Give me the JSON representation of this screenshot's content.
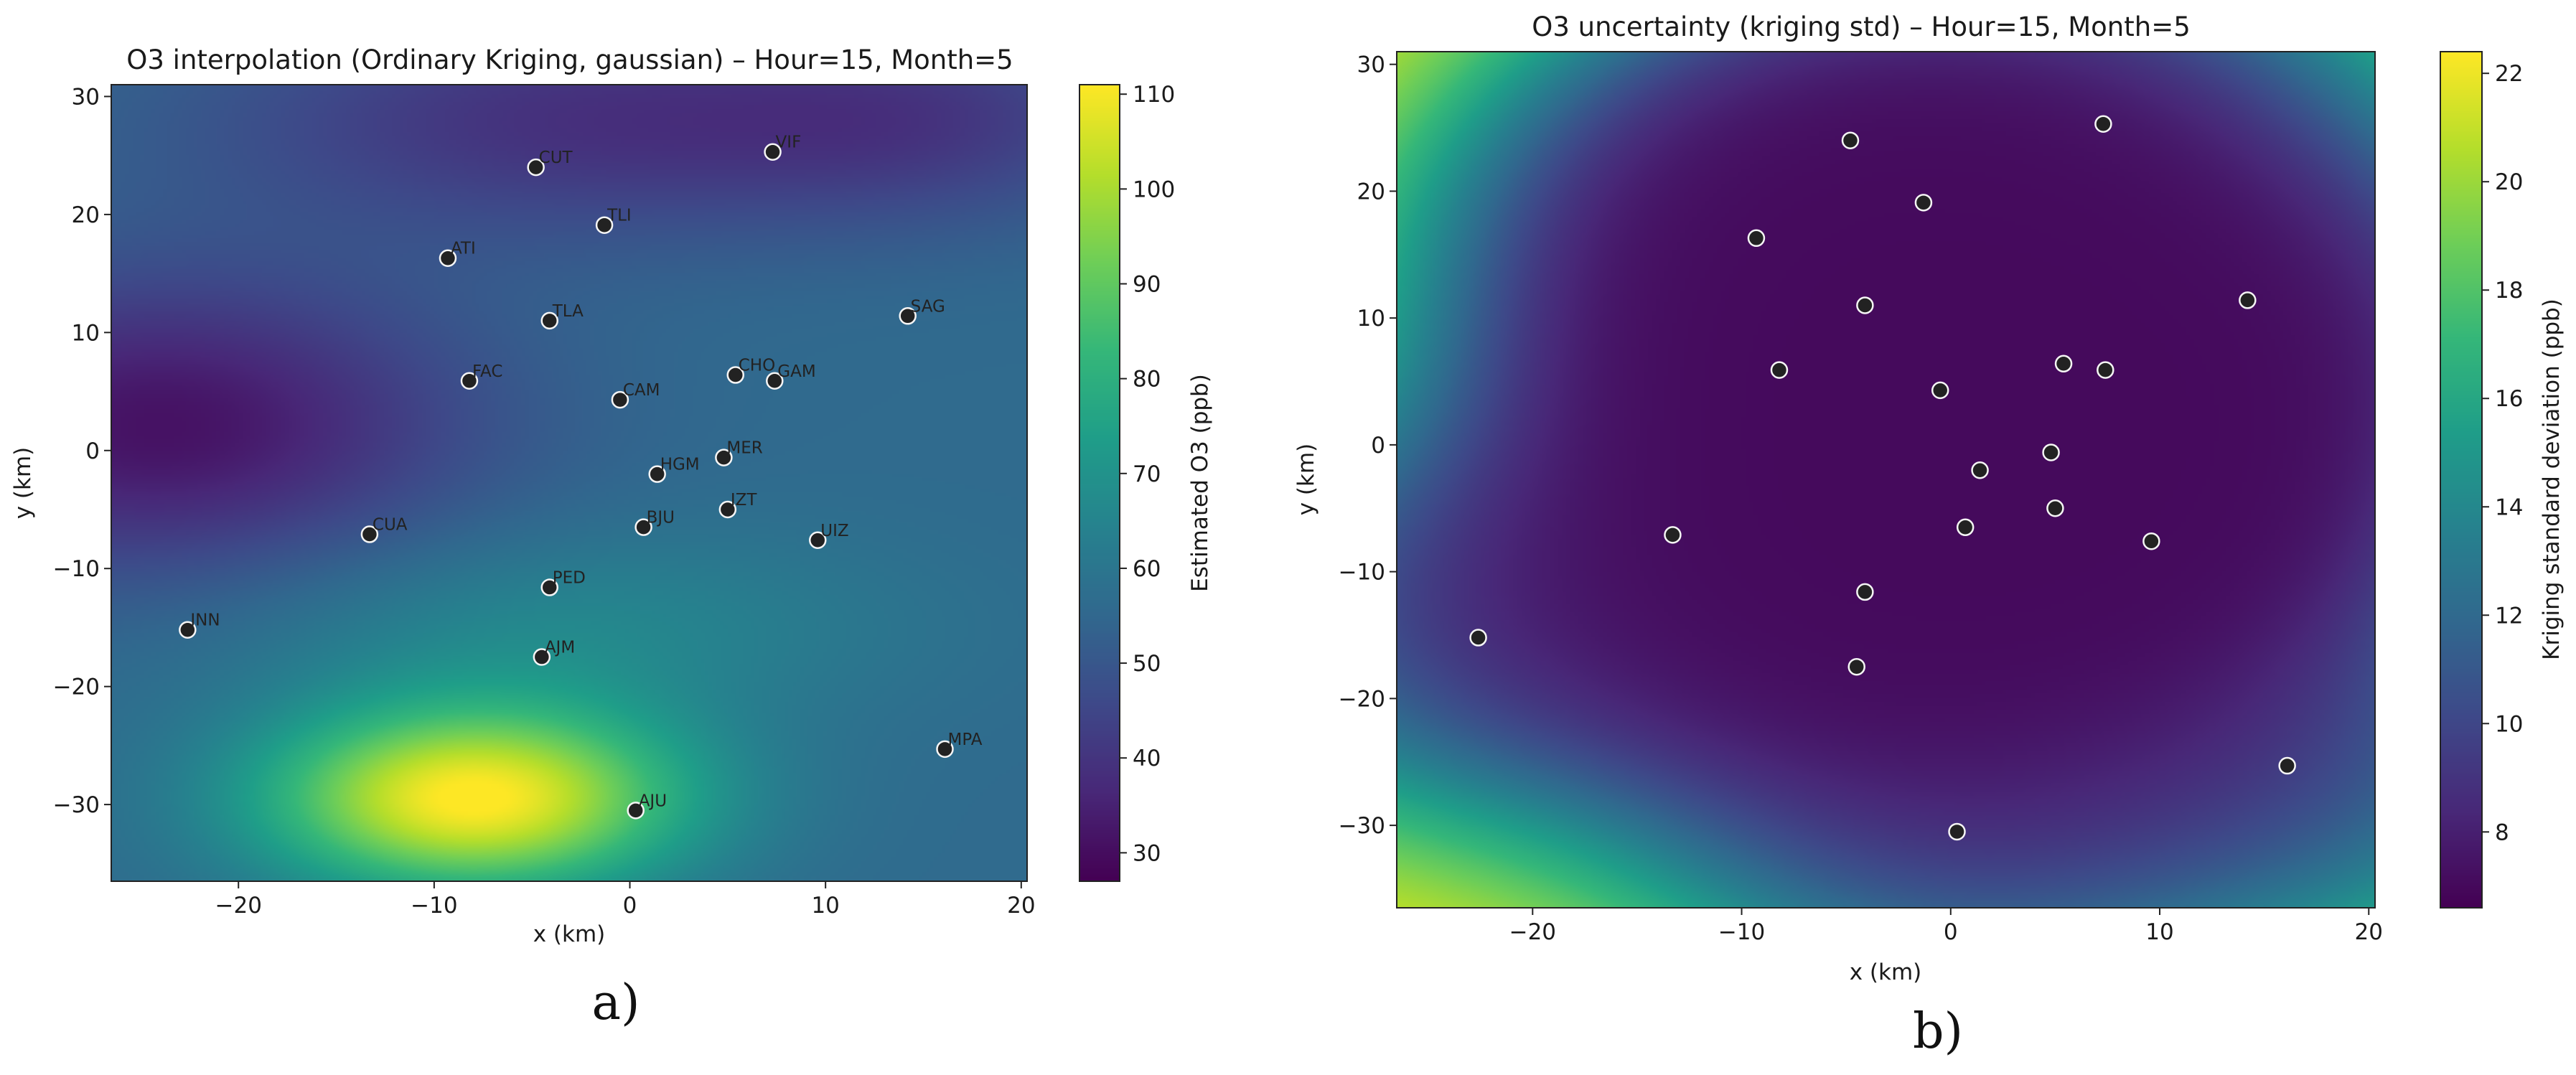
{
  "colors": {
    "viridis": [
      "#440154",
      "#482878",
      "#3e4989",
      "#31688e",
      "#26828e",
      "#1f9e89",
      "#35b779",
      "#6ece58",
      "#b5de2b",
      "#fde725"
    ],
    "marker_fill": "#222222",
    "marker_stroke": "#f5f5f5"
  },
  "chart_data": [
    {
      "type": "heatmap",
      "title": "O3 interpolation (Ordinary Kriging, gaussian) – Hour=15, Month=5",
      "xlabel": "x (km)",
      "ylabel": "y (km)",
      "xlim": [
        -26.5,
        20.3
      ],
      "ylim": [
        -36.5,
        31.0
      ],
      "xticks": [
        -20,
        -10,
        0,
        10,
        20
      ],
      "yticks": [
        -30,
        -20,
        -10,
        0,
        10,
        20,
        30
      ],
      "colorbar": {
        "label": "Estimated O3 (ppb)",
        "range": [
          27,
          111
        ],
        "ticks": [
          30,
          40,
          50,
          60,
          70,
          80,
          90,
          100,
          110
        ]
      },
      "field": {
        "base": 56,
        "components": [
          {
            "x": -8,
            "y": -29.5,
            "amplitude": 56,
            "sx": 7.5,
            "sy": 5.5
          },
          {
            "x": -4,
            "y": -15,
            "amplitude": 10,
            "sx": 12,
            "sy": 6
          },
          {
            "x": -24,
            "y": 2,
            "amplitude": -25,
            "sx": 11,
            "sy": 9
          },
          {
            "x": -2,
            "y": 28,
            "amplitude": -17,
            "sx": 14,
            "sy": 7
          },
          {
            "x": 16,
            "y": 28,
            "amplitude": -9,
            "sx": 8,
            "sy": 6
          }
        ]
      },
      "stations": [
        {
          "name": "CUT",
          "x": -4.8,
          "y": 24.0
        },
        {
          "name": "VIF",
          "x": 7.3,
          "y": 25.3
        },
        {
          "name": "TLI",
          "x": -1.3,
          "y": 19.1
        },
        {
          "name": "ATI",
          "x": -9.3,
          "y": 16.3
        },
        {
          "name": "SAG",
          "x": 14.2,
          "y": 11.4
        },
        {
          "name": "TLA",
          "x": -4.1,
          "y": 11.0
        },
        {
          "name": "FAC",
          "x": -8.2,
          "y": 5.9
        },
        {
          "name": "CAM",
          "x": -0.5,
          "y": 4.3
        },
        {
          "name": "CHO",
          "x": 5.4,
          "y": 6.4
        },
        {
          "name": "GAM",
          "x": 7.4,
          "y": 5.9
        },
        {
          "name": "MER",
          "x": 4.8,
          "y": -0.6
        },
        {
          "name": "HGM",
          "x": 1.4,
          "y": -2.0
        },
        {
          "name": "IZT",
          "x": 5.0,
          "y": -5.0
        },
        {
          "name": "BJU",
          "x": 0.7,
          "y": -6.5
        },
        {
          "name": "CUA",
          "x": -13.3,
          "y": -7.1
        },
        {
          "name": "UIZ",
          "x": 9.6,
          "y": -7.6
        },
        {
          "name": "PED",
          "x": -4.1,
          "y": -11.6
        },
        {
          "name": "INN",
          "x": -22.6,
          "y": -15.2
        },
        {
          "name": "AJM",
          "x": -4.5,
          "y": -17.5
        },
        {
          "name": "MPA",
          "x": 16.1,
          "y": -25.3
        },
        {
          "name": "AJU",
          "x": 0.3,
          "y": -30.5
        }
      ]
    },
    {
      "type": "heatmap",
      "title": "O3 uncertainty (kriging std) – Hour=15, Month=5",
      "xlabel": "x (km)",
      "ylabel": "y (km)",
      "xlim": [
        -26.5,
        20.3
      ],
      "ylim": [
        -36.5,
        31.0
      ],
      "xticks": [
        -20,
        -10,
        0,
        10,
        20
      ],
      "yticks": [
        -30,
        -20,
        -10,
        0,
        10,
        20,
        30
      ],
      "colorbar": {
        "label": "Kriging standard deviation (ppb)",
        "range": [
          6.6,
          22.4
        ],
        "ticks": [
          8,
          10,
          12,
          14,
          16,
          18,
          20,
          22
        ]
      },
      "field": {
        "min": 7.0,
        "max": 22.4,
        "length_scale": 9.5
      },
      "stations": [
        {
          "x": -4.8,
          "y": 24.0
        },
        {
          "x": 7.3,
          "y": 25.3
        },
        {
          "x": -1.3,
          "y": 19.1
        },
        {
          "x": -9.3,
          "y": 16.3
        },
        {
          "x": 14.2,
          "y": 11.4
        },
        {
          "x": -4.1,
          "y": 11.0
        },
        {
          "x": -8.2,
          "y": 5.9
        },
        {
          "x": -0.5,
          "y": 4.3
        },
        {
          "x": 5.4,
          "y": 6.4
        },
        {
          "x": 7.4,
          "y": 5.9
        },
        {
          "x": 4.8,
          "y": -0.6
        },
        {
          "x": 1.4,
          "y": -2.0
        },
        {
          "x": 5.0,
          "y": -5.0
        },
        {
          "x": 0.7,
          "y": -6.5
        },
        {
          "x": -13.3,
          "y": -7.1
        },
        {
          "x": 9.6,
          "y": -7.6
        },
        {
          "x": -4.1,
          "y": -11.6
        },
        {
          "x": -22.6,
          "y": -15.2
        },
        {
          "x": -4.5,
          "y": -17.5
        },
        {
          "x": 16.1,
          "y": -25.3
        },
        {
          "x": 0.3,
          "y": -30.5
        }
      ]
    }
  ],
  "panels": {
    "a_label": "a)",
    "b_label": "b)"
  }
}
